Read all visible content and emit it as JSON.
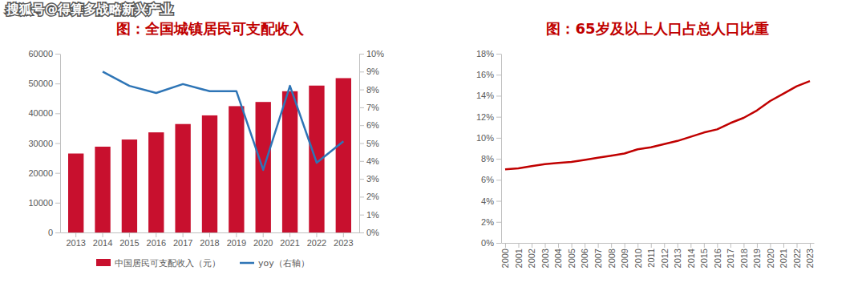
{
  "watermark": "搜狐号@得算多战略新兴产业",
  "chart_data": [
    {
      "type": "bar",
      "title": "图：全国城镇居民可支配收入",
      "categories": [
        "2013",
        "2014",
        "2015",
        "2016",
        "2017",
        "2018",
        "2019",
        "2020",
        "2021",
        "2022",
        "2023"
      ],
      "series": [
        {
          "name": "中国居民可支配收入（元）",
          "type": "bar",
          "color": "#c8102e",
          "values": [
            26500,
            28800,
            31200,
            33600,
            36400,
            39300,
            42400,
            43800,
            47400,
            49300,
            51800
          ]
        },
        {
          "name": "yoy（右轴）",
          "type": "line",
          "axis": "y2",
          "color": "#2e75b6",
          "values": [
            null,
            9.0,
            8.2,
            7.8,
            8.3,
            7.9,
            7.9,
            3.5,
            8.2,
            3.9,
            5.1
          ]
        }
      ],
      "ylim": [
        0,
        60000
      ],
      "yticks": [
        0,
        10000,
        20000,
        30000,
        40000,
        50000,
        60000
      ],
      "y2lim": [
        0,
        10
      ],
      "y2ticks": [
        {
          "value": 0,
          "label": "0%"
        },
        {
          "value": 1,
          "label": "1%"
        },
        {
          "value": 2,
          "label": "2%"
        },
        {
          "value": 3,
          "label": "3%"
        },
        {
          "value": 4,
          "label": "4%"
        },
        {
          "value": 5,
          "label": "5%"
        },
        {
          "value": 6,
          "label": "6%"
        },
        {
          "value": 7,
          "label": "7%"
        },
        {
          "value": 8,
          "label": "8%"
        },
        {
          "value": 9,
          "label": "9%"
        },
        {
          "value": 10,
          "label": "10%"
        }
      ],
      "grid": false,
      "legend": "bottom"
    },
    {
      "type": "line",
      "title": "图：65岁及以上人口占总人口比重",
      "categories": [
        "2000",
        "2001",
        "2002",
        "2003",
        "2004",
        "2005",
        "2006",
        "2007",
        "2008",
        "2009",
        "2010",
        "2011",
        "2012",
        "2013",
        "2014",
        "2015",
        "2016",
        "2017",
        "2018",
        "2019",
        "2020",
        "2021",
        "2022",
        "2023"
      ],
      "values": [
        7.0,
        7.1,
        7.3,
        7.5,
        7.6,
        7.7,
        7.9,
        8.1,
        8.3,
        8.5,
        8.9,
        9.1,
        9.4,
        9.7,
        10.1,
        10.5,
        10.8,
        11.4,
        11.9,
        12.6,
        13.5,
        14.2,
        14.9,
        15.4
      ],
      "color": "#c00000",
      "ylim": [
        0,
        18
      ],
      "yticks": [
        {
          "value": 0,
          "label": "0%"
        },
        {
          "value": 2,
          "label": "2%"
        },
        {
          "value": 4,
          "label": "4%"
        },
        {
          "value": 6,
          "label": "6%"
        },
        {
          "value": 8,
          "label": "8%"
        },
        {
          "value": 10,
          "label": "10%"
        },
        {
          "value": 12,
          "label": "12%"
        },
        {
          "value": 14,
          "label": "14%"
        },
        {
          "value": 16,
          "label": "16%"
        },
        {
          "value": 18,
          "label": "18%"
        }
      ],
      "grid": false
    }
  ]
}
